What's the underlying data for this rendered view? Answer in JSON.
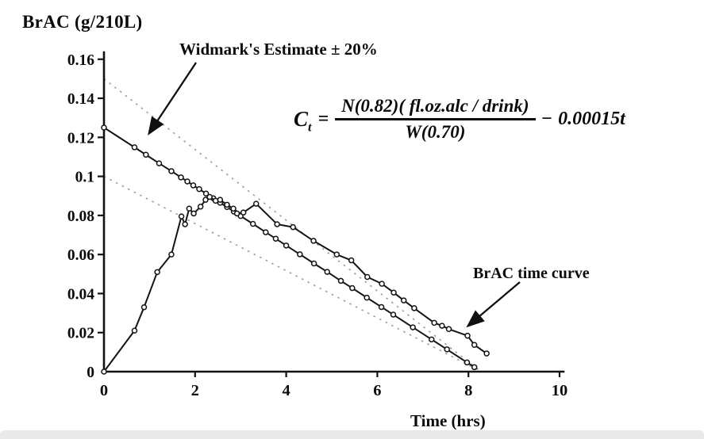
{
  "figure": {
    "y_axis_title": "BrAC (g/210L)",
    "x_axis_title": "Time (hrs)"
  },
  "annotations": {
    "widmark_label": "Widmark's Estimate ± 20%",
    "brac_label": "BrAC time curve"
  },
  "formula": {
    "lhs_base": "C",
    "lhs_sub": "t",
    "equals": "=",
    "numerator": "N(0.82)( fl.oz.alc / drink)",
    "denominator": "W(0.70)",
    "minus": "−",
    "trailing": "0.00015t"
  },
  "chart_data": {
    "type": "line",
    "title": "",
    "ylabel": "BrAC (g/210L)",
    "xlabel": "Time (hrs)",
    "xlim": [
      0,
      10
    ],
    "ylim": [
      0,
      0.16
    ],
    "grid": false,
    "legend": "none (arrow annotations on plot)",
    "x_ticks": {
      "values": [
        0,
        2,
        4,
        6,
        8,
        10
      ],
      "labels": [
        "0",
        "2",
        "4",
        "6",
        "8",
        "10"
      ]
    },
    "y_ticks": {
      "values": [
        0.16,
        0.14,
        0.12,
        0.1,
        0.08,
        0.06,
        0.04,
        0.02,
        0
      ],
      "labels": [
        "0.16",
        "0.14",
        "0.12",
        "0.1",
        "0.08",
        "0.06",
        "0.04",
        "0.02",
        "0"
      ]
    },
    "series": [
      {
        "name": "Widmark's Estimate",
        "style": "solid",
        "marker": "open-circle",
        "points": [
          [
            0,
            0.125
          ],
          [
            0.67,
            0.1149
          ],
          [
            0.92,
            0.1111
          ],
          [
            1.21,
            0.1067
          ],
          [
            1.48,
            0.1027
          ],
          [
            1.69,
            0.0995
          ],
          [
            1.83,
            0.0974
          ],
          [
            1.96,
            0.0954
          ],
          [
            2.09,
            0.0935
          ],
          [
            2.24,
            0.0912
          ],
          [
            2.4,
            0.0888
          ],
          [
            2.55,
            0.0865
          ],
          [
            2.7,
            0.0843
          ],
          [
            2.85,
            0.082
          ],
          [
            3.0,
            0.0797
          ],
          [
            3.27,
            0.0757
          ],
          [
            3.55,
            0.0714
          ],
          [
            3.77,
            0.0681
          ],
          [
            4.0,
            0.0646
          ],
          [
            4.3,
            0.0601
          ],
          [
            4.61,
            0.0554
          ],
          [
            4.9,
            0.0511
          ],
          [
            5.2,
            0.0465
          ],
          [
            5.45,
            0.0428
          ],
          [
            5.77,
            0.0379
          ],
          [
            6.09,
            0.0331
          ],
          [
            6.35,
            0.0292
          ],
          [
            6.78,
            0.0227
          ],
          [
            7.19,
            0.0165
          ],
          [
            7.53,
            0.0114
          ],
          [
            7.97,
            0.0047
          ],
          [
            8.13,
            0.0023
          ]
        ]
      },
      {
        "name": "BrAC time curve",
        "style": "solid",
        "marker": "open-circle",
        "points": [
          [
            0,
            0
          ],
          [
            0.67,
            0.021
          ],
          [
            0.88,
            0.033
          ],
          [
            1.17,
            0.051
          ],
          [
            1.48,
            0.06
          ],
          [
            1.7,
            0.0795
          ],
          [
            1.78,
            0.0755
          ],
          [
            1.87,
            0.0835
          ],
          [
            1.97,
            0.081
          ],
          [
            2.12,
            0.0845
          ],
          [
            2.23,
            0.088
          ],
          [
            2.32,
            0.0895
          ],
          [
            2.45,
            0.0875
          ],
          [
            2.55,
            0.088
          ],
          [
            2.7,
            0.0855
          ],
          [
            2.84,
            0.0835
          ],
          [
            2.92,
            0.081
          ],
          [
            3.06,
            0.0815
          ],
          [
            3.34,
            0.086
          ],
          [
            3.8,
            0.0755
          ],
          [
            4.15,
            0.074
          ],
          [
            4.6,
            0.067
          ],
          [
            5.11,
            0.06
          ],
          [
            5.43,
            0.057
          ],
          [
            5.78,
            0.0485
          ],
          [
            6.1,
            0.045
          ],
          [
            6.36,
            0.0405
          ],
          [
            6.58,
            0.0365
          ],
          [
            6.81,
            0.0325
          ],
          [
            7.25,
            0.025
          ],
          [
            7.42,
            0.0235
          ],
          [
            7.57,
            0.0218
          ],
          [
            7.98,
            0.0184
          ],
          [
            8.13,
            0.0137
          ],
          [
            8.4,
            0.0093
          ]
        ]
      },
      {
        "name": "Widmark's Estimate +20% bound",
        "style": "dotted",
        "marker": "none",
        "points": [
          [
            0,
            0.15
          ],
          [
            8.28,
            0
          ]
        ]
      },
      {
        "name": "Widmark's Estimate -20% bound",
        "style": "dotted",
        "marker": "none",
        "points": [
          [
            0,
            0.1
          ],
          [
            8.28,
            0
          ]
        ]
      }
    ]
  }
}
